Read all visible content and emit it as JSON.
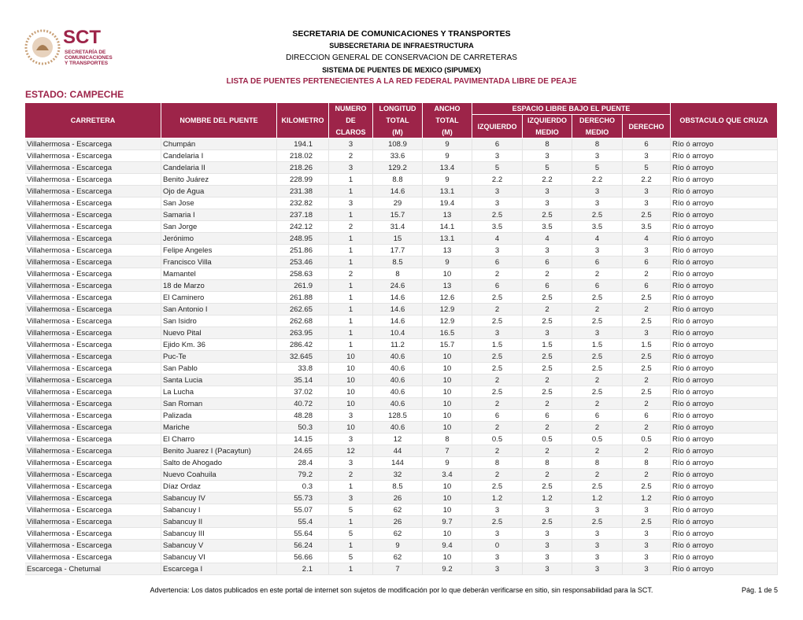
{
  "logo": {
    "acronym": "SCT",
    "lines": [
      "SECRETARÍA DE",
      "COMUNICACIONES",
      "Y TRANSPORTES"
    ]
  },
  "header": {
    "lines": [
      "SECRETARIA DE COMUNICACIONES Y TRANSPORTES",
      "SUBSECRETARIA DE INFRAESTRUCTURA",
      "DIRECCION GENERAL DE CONSERVACION DE CARRETERAS",
      "SISTEMA DE PUENTES DE MEXICO (SIPUMEX)",
      "LISTA DE PUENTES PERTENECIENTES A LA RED FEDERAL PAVIMENTADA LIBRE DE PEAJE"
    ],
    "estado": "ESTADO: CAMPECHE"
  },
  "table": {
    "group": "ESPACIO LIBRE BAJO EL PUENTE",
    "columns": [
      [
        "CARRETERA"
      ],
      [
        "NOMBRE DEL PUENTE"
      ],
      [
        "KILOMETRO"
      ],
      [
        "NUMERO",
        "DE",
        "CLAROS"
      ],
      [
        "LONGITUD",
        "TOTAL",
        "(M)"
      ],
      [
        "ANCHO",
        "TOTAL",
        "(M)"
      ],
      [
        "IZQUIERDO"
      ],
      [
        "IZQUIERDO",
        "MEDIO"
      ],
      [
        "DERECHO",
        "MEDIO"
      ],
      [
        "DERECHO"
      ],
      [
        "OBSTACULO QUE CRUZA"
      ]
    ],
    "rows": [
      [
        "Villahermosa - Escarcega",
        "Chumpán",
        "194.1",
        "3",
        "108.9",
        "9",
        "6",
        "8",
        "8",
        "6",
        "Río ó arroyo"
      ],
      [
        "Villahermosa - Escarcega",
        "Candelaria I",
        "218.02",
        "2",
        "33.6",
        "9",
        "3",
        "3",
        "3",
        "3",
        "Río ó arroyo"
      ],
      [
        "Villahermosa - Escarcega",
        "Candelaria II",
        "218.26",
        "3",
        "129.2",
        "13.4",
        "5",
        "5",
        "5",
        "5",
        "Río ó arroyo"
      ],
      [
        "Villahermosa - Escarcega",
        "Benito Juárez",
        "228.99",
        "1",
        "8.8",
        "9",
        "2.2",
        "2.2",
        "2.2",
        "2.2",
        "Río ó arroyo"
      ],
      [
        "Villahermosa - Escarcega",
        "Ojo de Agua",
        "231.38",
        "1",
        "14.6",
        "13.1",
        "3",
        "3",
        "3",
        "3",
        "Río ó arroyo"
      ],
      [
        "Villahermosa - Escarcega",
        "San Jose",
        "232.82",
        "3",
        "29",
        "19.4",
        "3",
        "3",
        "3",
        "3",
        "Río ó arroyo"
      ],
      [
        "Villahermosa - Escarcega",
        "Samaria I",
        "237.18",
        "1",
        "15.7",
        "13",
        "2.5",
        "2.5",
        "2.5",
        "2.5",
        "Río ó arroyo"
      ],
      [
        "Villahermosa - Escarcega",
        "San Jorge",
        "242.12",
        "2",
        "31.4",
        "14.1",
        "3.5",
        "3.5",
        "3.5",
        "3.5",
        "Río ó arroyo"
      ],
      [
        "Villahermosa - Escarcega",
        "Jerónimo",
        "248.95",
        "1",
        "15",
        "13.1",
        "4",
        "4",
        "4",
        "4",
        "Río ó arroyo"
      ],
      [
        "Villahermosa - Escarcega",
        "Felipe Angeles",
        "251.86",
        "1",
        "17.7",
        "13",
        "3",
        "3",
        "3",
        "3",
        "Río ó arroyo"
      ],
      [
        "Villahermosa - Escarcega",
        "Francisco Villa",
        "253.46",
        "1",
        "8.5",
        "9",
        "6",
        "6",
        "6",
        "6",
        "Río ó arroyo"
      ],
      [
        "Villahermosa - Escarcega",
        "Mamantel",
        "258.63",
        "2",
        "8",
        "10",
        "2",
        "2",
        "2",
        "2",
        "Río ó arroyo"
      ],
      [
        "Villahermosa - Escarcega",
        "18 de Marzo",
        "261.9",
        "1",
        "24.6",
        "13",
        "6",
        "6",
        "6",
        "6",
        "Río ó arroyo"
      ],
      [
        "Villahermosa - Escarcega",
        "El Caminero",
        "261.88",
        "1",
        "14.6",
        "12.6",
        "2.5",
        "2.5",
        "2.5",
        "2.5",
        "Río ó arroyo"
      ],
      [
        "Villahermosa - Escarcega",
        "San Antonio I",
        "262.65",
        "1",
        "14.6",
        "12.9",
        "2",
        "2",
        "2",
        "2",
        "Río ó arroyo"
      ],
      [
        "Villahermosa - Escarcega",
        "San Isidro",
        "262.68",
        "1",
        "14.6",
        "12.9",
        "2.5",
        "2.5",
        "2.5",
        "2.5",
        "Río ó arroyo"
      ],
      [
        "Villahermosa - Escarcega",
        "Nuevo Pital",
        "263.95",
        "1",
        "10.4",
        "16.5",
        "3",
        "3",
        "3",
        "3",
        "Río ó arroyo"
      ],
      [
        "Villahermosa - Escarcega",
        "Ejido Km. 36",
        "286.42",
        "1",
        "11.2",
        "15.7",
        "1.5",
        "1.5",
        "1.5",
        "1.5",
        "Río ó arroyo"
      ],
      [
        "Villahermosa - Escarcega",
        "Puc-Te",
        "32.645",
        "10",
        "40.6",
        "10",
        "2.5",
        "2.5",
        "2.5",
        "2.5",
        "Río ó arroyo"
      ],
      [
        "Villahermosa - Escarcega",
        "San Pablo",
        "33.8",
        "10",
        "40.6",
        "10",
        "2.5",
        "2.5",
        "2.5",
        "2.5",
        "Río ó arroyo"
      ],
      [
        "Villahermosa - Escarcega",
        "Santa Lucia",
        "35.14",
        "10",
        "40.6",
        "10",
        "2",
        "2",
        "2",
        "2",
        "Río ó arroyo"
      ],
      [
        "Villahermosa - Escarcega",
        "La Lucha",
        "37.02",
        "10",
        "40.6",
        "10",
        "2.5",
        "2.5",
        "2.5",
        "2.5",
        "Río ó arroyo"
      ],
      [
        "Villahermosa - Escarcega",
        "San Roman",
        "40.72",
        "10",
        "40.6",
        "10",
        "2",
        "2",
        "2",
        "2",
        "Río ó arroyo"
      ],
      [
        "Villahermosa - Escarcega",
        "Palizada",
        "48.28",
        "3",
        "128.5",
        "10",
        "6",
        "6",
        "6",
        "6",
        "Río ó arroyo"
      ],
      [
        "Villahermosa - Escarcega",
        "Mariche",
        "50.3",
        "10",
        "40.6",
        "10",
        "2",
        "2",
        "2",
        "2",
        "Río ó arroyo"
      ],
      [
        "Villahermosa - Escarcega",
        "El Charro",
        "14.15",
        "3",
        "12",
        "8",
        "0.5",
        "0.5",
        "0.5",
        "0.5",
        "Río ó arroyo"
      ],
      [
        "Villahermosa - Escarcega",
        "Benito Juarez I (Pacaytun)",
        "24.65",
        "12",
        "44",
        "7",
        "2",
        "2",
        "2",
        "2",
        "Río ó arroyo"
      ],
      [
        "Villahermosa - Escarcega",
        "Salto de Ahogado",
        "28.4",
        "3",
        "144",
        "9",
        "8",
        "8",
        "8",
        "8",
        "Río ó arroyo"
      ],
      [
        "Villahermosa - Escarcega",
        "Nuevo Coahuila",
        "79.2",
        "2",
        "32",
        "3.4",
        "2",
        "2",
        "2",
        "2",
        "Río ó arroyo"
      ],
      [
        "Villahermosa - Escarcega",
        "Díaz  Ordaz",
        "0.3",
        "1",
        "8.5",
        "10",
        "2.5",
        "2.5",
        "2.5",
        "2.5",
        "Río ó arroyo"
      ],
      [
        "Villahermosa - Escarcega",
        "Sabancuy IV",
        "55.73",
        "3",
        "26",
        "10",
        "1.2",
        "1.2",
        "1.2",
        "1.2",
        "Río ó arroyo"
      ],
      [
        "Villahermosa - Escarcega",
        "Sabancuy I",
        "55.07",
        "5",
        "62",
        "10",
        "3",
        "3",
        "3",
        "3",
        "Río ó arroyo"
      ],
      [
        "Villahermosa - Escarcega",
        "Sabancuy II",
        "55.4",
        "1",
        "26",
        "9.7",
        "2.5",
        "2.5",
        "2.5",
        "2.5",
        "Río ó arroyo"
      ],
      [
        "Villahermosa - Escarcega",
        "Sabancuy III",
        "55.64",
        "5",
        "62",
        "10",
        "3",
        "3",
        "3",
        "3",
        "Río ó arroyo"
      ],
      [
        "Villahermosa - Escarcega",
        "Sabancuy V",
        "56.24",
        "1",
        "9",
        "9.4",
        "0",
        "3",
        "3",
        "3",
        "Río ó arroyo"
      ],
      [
        "Villahermosa - Escarcega",
        "Sabancuy VI",
        "56.66",
        "5",
        "62",
        "10",
        "3",
        "3",
        "3",
        "3",
        "Río ó arroyo"
      ],
      [
        "Escarcega - Chetumal",
        "Escarcega I",
        "2.1",
        "1",
        "7",
        "9.2",
        "3",
        "3",
        "3",
        "3",
        "Río ó arroyo"
      ]
    ]
  },
  "footer": {
    "note": "Advertencia: Los datos publicados en este portal de internet son sujetos de modificación por lo que deberán verificarse en sitio, sin responsabilidad para la SCT.",
    "page": "Pág. 1 de 5"
  }
}
